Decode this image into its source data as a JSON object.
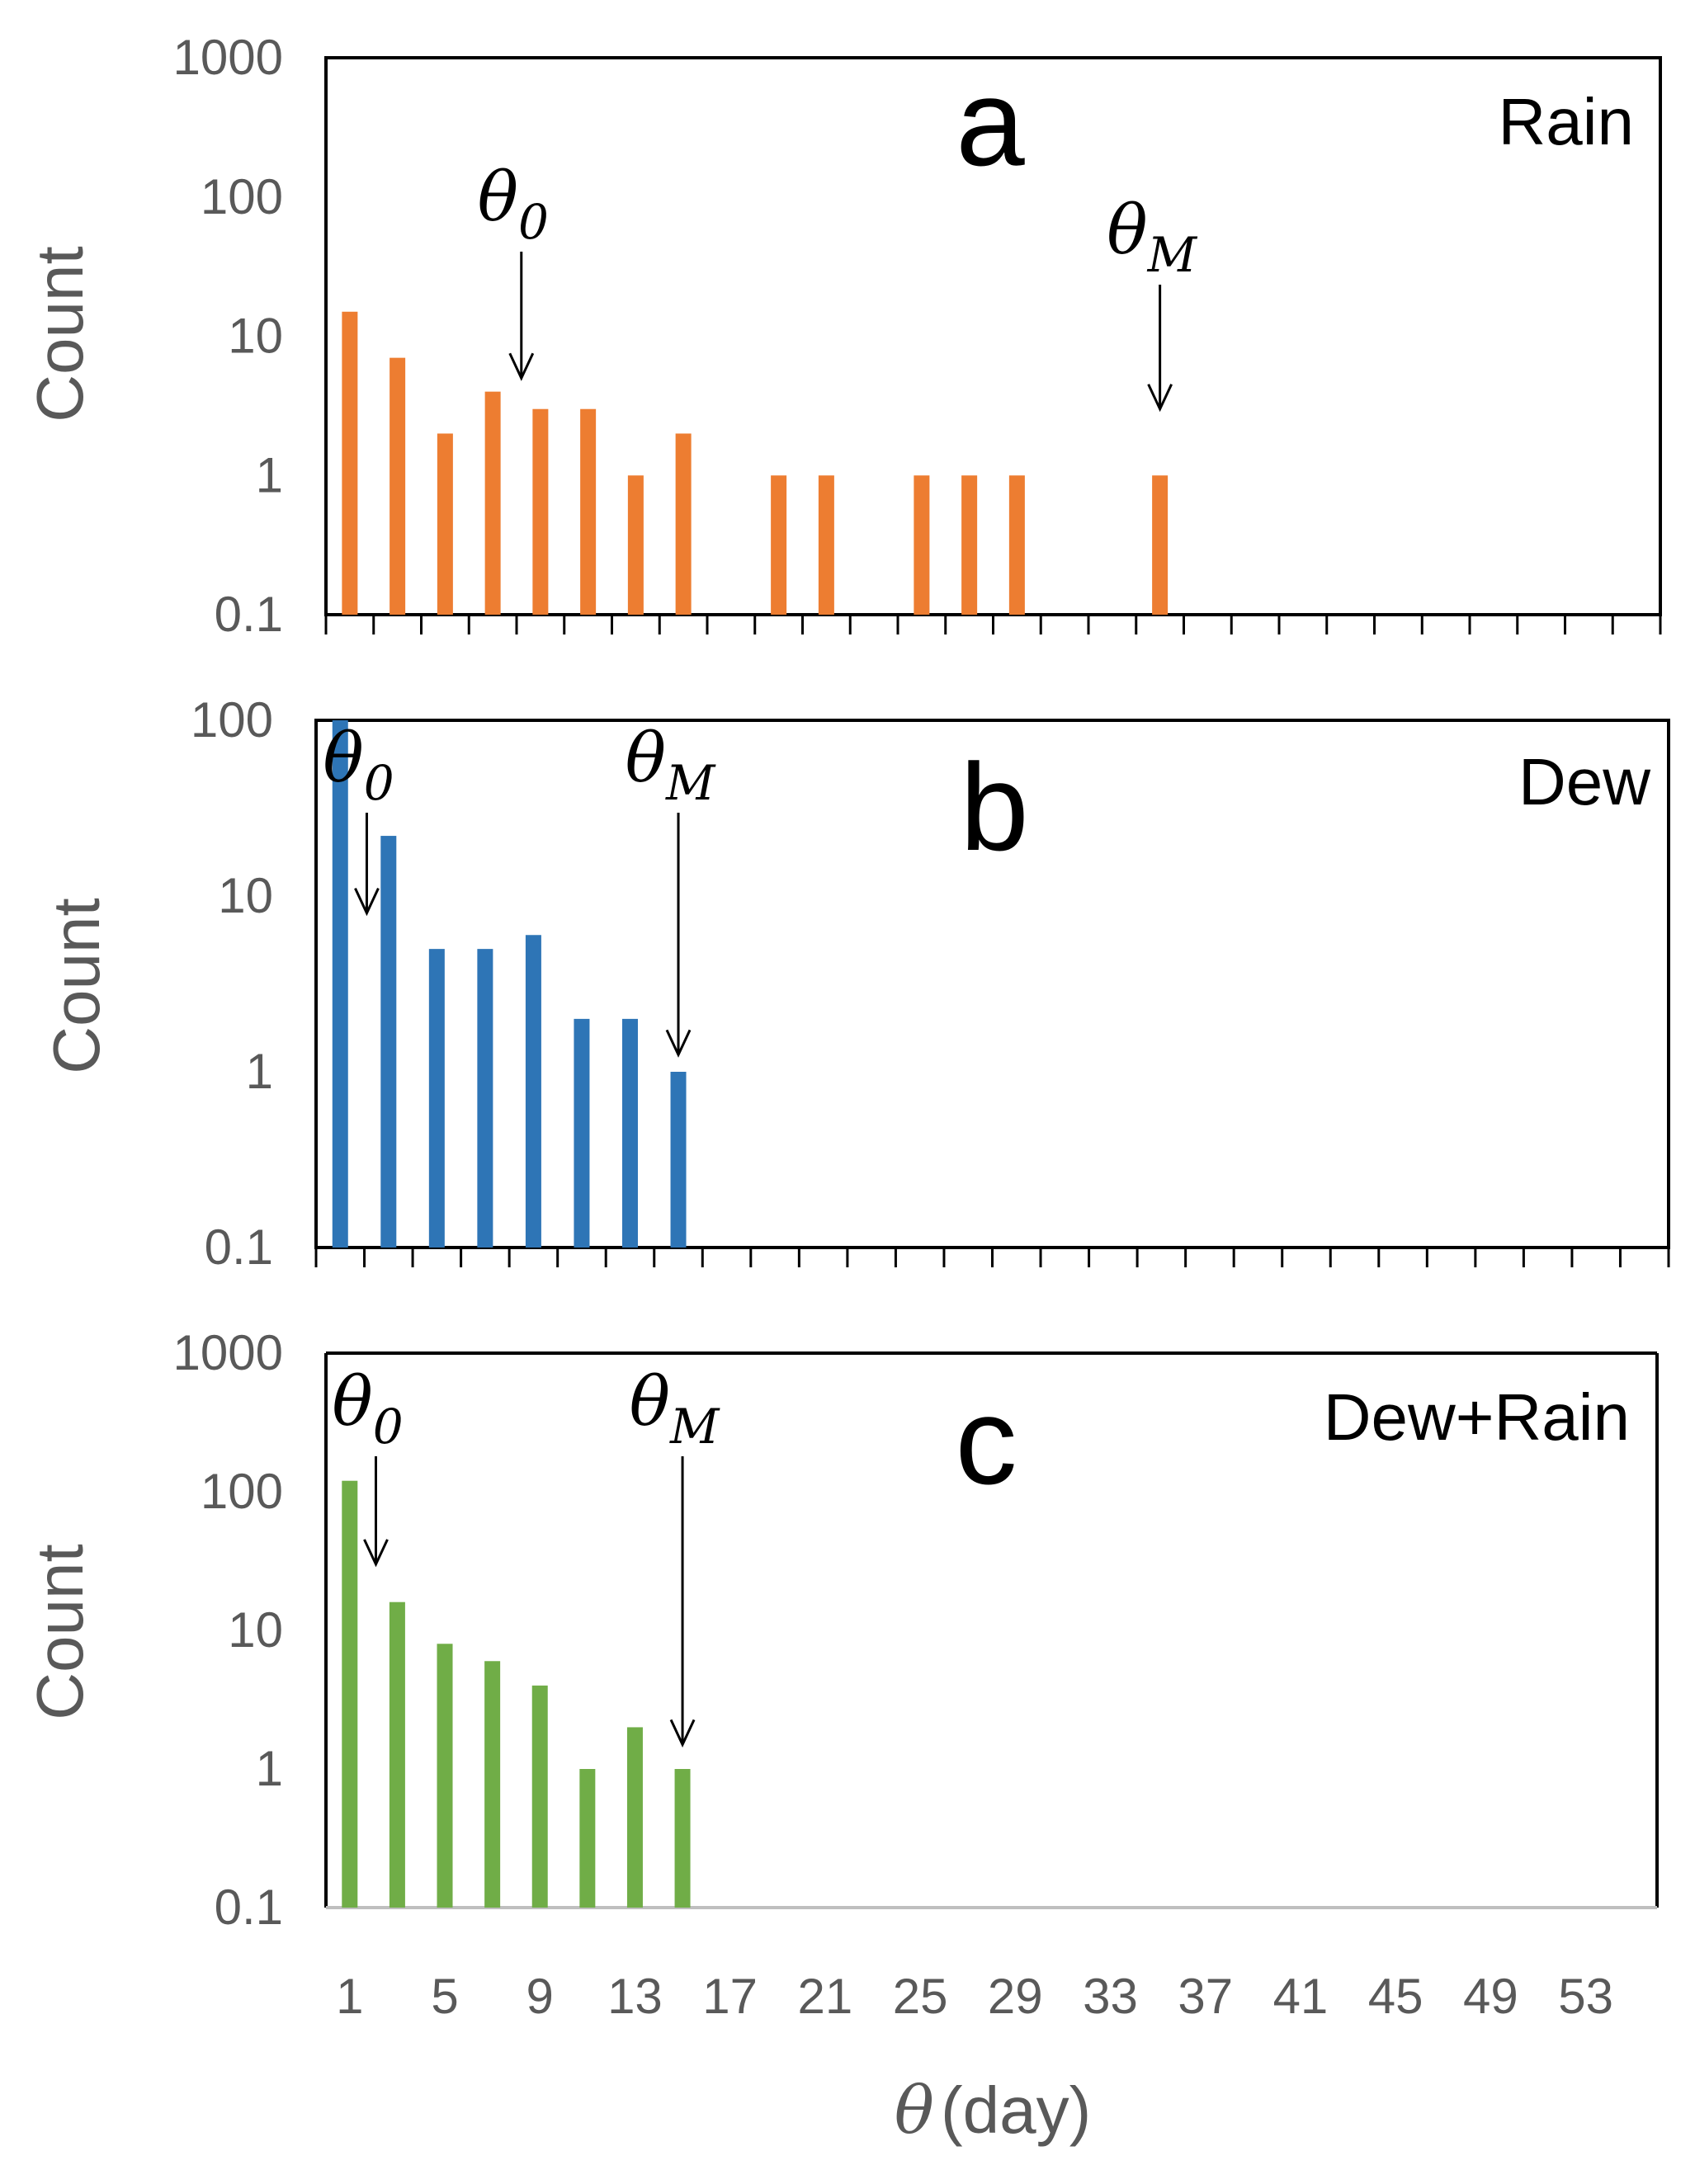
{
  "chart_data": [
    {
      "type": "bar",
      "panel_letter": "a",
      "series_label": "Rain",
      "ylabel": "Count",
      "yscale": "log",
      "ylim": [
        0.1,
        1000
      ],
      "y_tick_labels": [
        "0.1",
        "1",
        "10",
        "100",
        "1000"
      ],
      "color": "#ED7D31",
      "series": [
        {
          "x": [
            1,
            3,
            5,
            7,
            9,
            11,
            13,
            15,
            19,
            21,
            25,
            27,
            29,
            35
          ],
          "values": [
            15,
            7,
            2,
            4,
            3,
            3,
            1,
            2,
            1,
            1,
            1,
            1,
            1,
            1
          ]
        }
      ],
      "annotations": [
        {
          "symbol": "θ",
          "subscript": "0",
          "x": 8.2,
          "points_to_value": 5
        },
        {
          "symbol": "θ",
          "subscript": "M",
          "x": 35,
          "points_to_value": 3
        }
      ],
      "frame": "full",
      "x_tick_marks": "every_other_day"
    },
    {
      "type": "bar",
      "panel_letter": "b",
      "series_label": "Dew",
      "ylabel": "Count",
      "yscale": "log",
      "ylim": [
        0.1,
        100
      ],
      "y_tick_labels": [
        "0.1",
        "1",
        "10",
        "100"
      ],
      "color": "#2E75B6",
      "series": [
        {
          "x": [
            1,
            3,
            5,
            7,
            9,
            11,
            13,
            15
          ],
          "values": [
            100,
            22,
            5,
            5,
            6,
            2,
            2,
            1
          ]
        }
      ],
      "annotations": [
        {
          "symbol": "θ",
          "subscript": "0",
          "x": 2.1,
          "points_to_value": 8
        },
        {
          "symbol": "θ",
          "subscript": "M",
          "x": 15,
          "points_to_value": 1.25
        }
      ],
      "frame": "full",
      "x_tick_marks": "every_other_day"
    },
    {
      "type": "bar",
      "panel_letter": "c",
      "series_label": "Dew+Rain",
      "ylabel": "Count",
      "yscale": "log",
      "ylim": [
        0.1,
        1000
      ],
      "y_tick_labels": [
        "0.1",
        "1",
        "10",
        "100",
        "1000"
      ],
      "color": "#70AD47",
      "series": [
        {
          "x": [
            1,
            3,
            5,
            7,
            9,
            11,
            13,
            15
          ],
          "values": [
            120,
            16,
            8,
            6,
            4,
            1,
            2,
            1
          ]
        }
      ],
      "annotations": [
        {
          "symbol": "θ",
          "subscript": "0",
          "x": 2.1,
          "points_to_value": 30
        },
        {
          "symbol": "θ",
          "subscript": "M",
          "x": 15,
          "points_to_value": 1.5
        }
      ],
      "frame": "open-bottom",
      "x_tick_labels": [
        "1",
        "5",
        "9",
        "13",
        "17",
        "21",
        "25",
        "29",
        "33",
        "37",
        "41",
        "45",
        "49",
        "53"
      ],
      "xlabel_symbol": "θ",
      "xlabel_unit": "(day)"
    }
  ]
}
